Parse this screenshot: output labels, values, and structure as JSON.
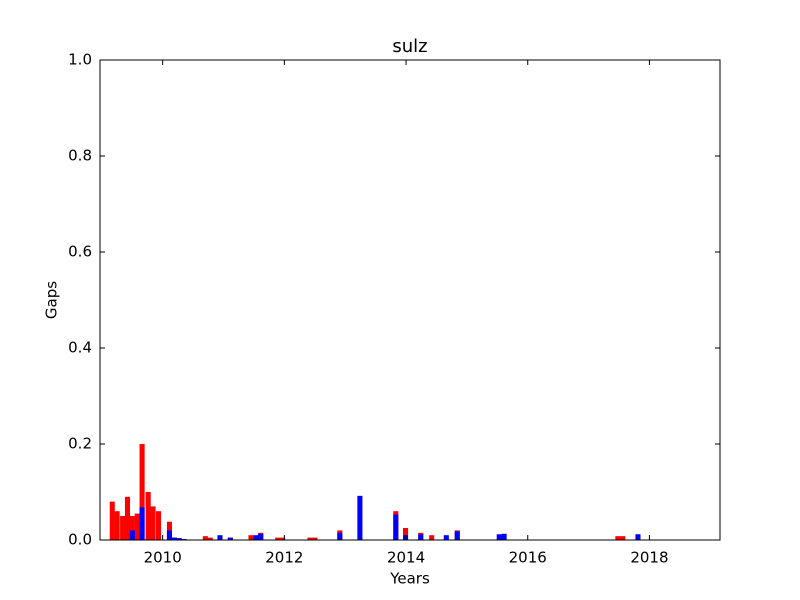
{
  "chart_data": {
    "type": "bar",
    "title": "sulz",
    "x_label": "Years",
    "y_label": "Gaps",
    "x": [
      2009.13,
      2009.21,
      2009.3,
      2009.38,
      2009.46,
      2009.54,
      2009.62,
      2009.72,
      2009.8,
      2009.89,
      2010.07,
      2010.15,
      2010.23,
      2010.31,
      2010.66,
      2010.74,
      2010.9,
      2011.07,
      2011.41,
      2011.49,
      2011.57,
      2011.85,
      2011.93,
      2012.38,
      2012.46,
      2012.87,
      2013.2,
      2013.79,
      2013.95,
      2014.2,
      2014.38,
      2014.62,
      2014.8,
      2015.49,
      2015.57,
      2017.44,
      2017.52,
      2017.77
    ],
    "series": [
      {
        "color": "#ff0000",
        "values": [
          0.08,
          0.06,
          0.05,
          0.09,
          0.05,
          0.055,
          0.2,
          0.1,
          0.07,
          0.06,
          0.038,
          0.005,
          0,
          0,
          0.008,
          0.005,
          0,
          0.005,
          0.01,
          0,
          0.015,
          0.005,
          0.005,
          0.005,
          0.005,
          0.02,
          0,
          0.06,
          0.025,
          0.015,
          0.01,
          0,
          0.02,
          0,
          0,
          0.008,
          0.008,
          0
        ]
      },
      {
        "color": "#0000ff",
        "values": [
          0,
          0,
          0,
          0,
          0.02,
          0,
          0.068,
          0,
          0,
          0,
          0.02,
          0.005,
          0.004,
          0.002,
          0,
          0,
          0.01,
          0.005,
          0,
          0.01,
          0.013,
          0,
          0,
          0,
          0,
          0.015,
          0.092,
          0.053,
          0.01,
          0.012,
          0,
          0.01,
          0.018,
          0.012,
          0.013,
          0,
          0,
          0.012
        ]
      }
    ],
    "xlim": [
      2008.97,
      2019.16
    ],
    "xticks": [
      2010,
      2012,
      2014,
      2016,
      2018
    ],
    "ylim": [
      0,
      1
    ],
    "yticks": [
      {
        "value": 0,
        "label": "0.0"
      },
      {
        "value": 0.2,
        "label": "0.2"
      },
      {
        "value": 0.4,
        "label": "0.4"
      },
      {
        "value": 0.6,
        "label": "0.6"
      },
      {
        "value": 0.8,
        "label": "0.8"
      },
      {
        "value": 1,
        "label": "1.0"
      }
    ]
  }
}
